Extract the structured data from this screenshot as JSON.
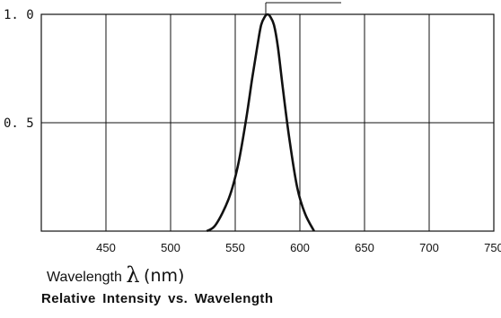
{
  "chart_data": {
    "type": "line",
    "title": "Relative Intensity vs. Wavelength",
    "xlabel_text": "Wavelength",
    "xlabel_symbol": "λ",
    "xlabel_unit": "(nm)",
    "xlim": [
      400,
      750
    ],
    "ylim": [
      0,
      1.0
    ],
    "x_ticks": [
      "450",
      "500",
      "550",
      "600",
      "650",
      "700",
      "750"
    ],
    "y_ticks": [
      "0.5",
      "1.0"
    ],
    "y_tick_display": [
      "0. 5",
      "1. 0"
    ],
    "grid": true,
    "series": [
      {
        "x": [
          528,
          535,
          545,
          552,
          558,
          563,
          567,
          570,
          573,
          575,
          577,
          580,
          583,
          587,
          592,
          598,
          604,
          611
        ],
        "y": [
          0.0,
          0.03,
          0.15,
          0.3,
          0.5,
          0.7,
          0.85,
          0.95,
          0.99,
          1.0,
          0.99,
          0.95,
          0.85,
          0.65,
          0.42,
          0.2,
          0.08,
          0.0
        ]
      }
    ]
  }
}
